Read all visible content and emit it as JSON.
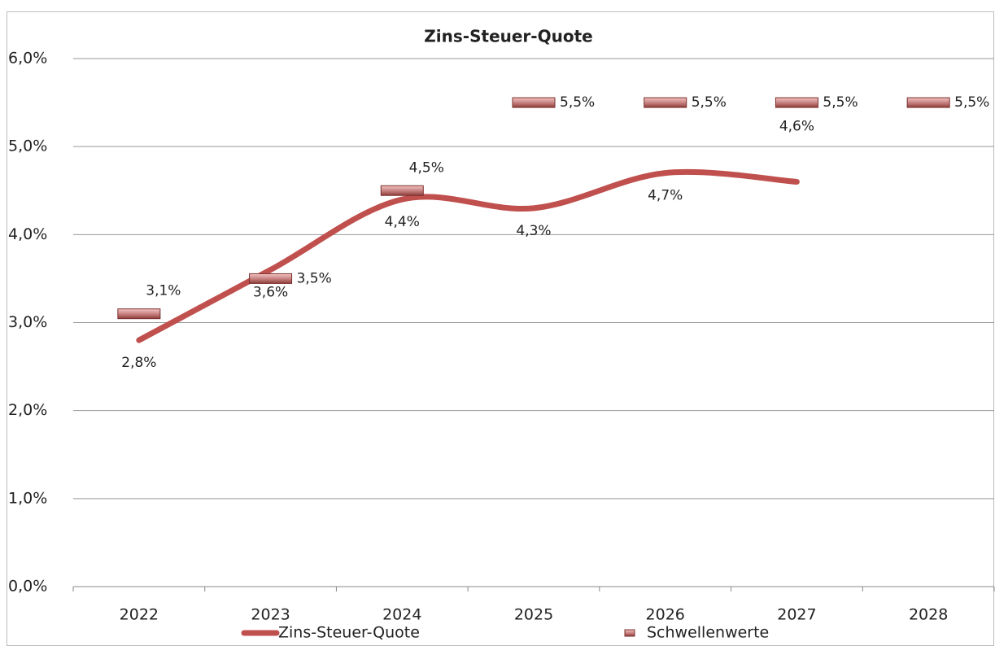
{
  "chart_data": {
    "type": "line",
    "title": "Zins-Steuer-Quote",
    "categories": [
      "2022",
      "2023",
      "2024",
      "2025",
      "2026",
      "2027",
      "2028"
    ],
    "ylim": [
      0,
      6
    ],
    "yticks": [
      {
        "value": 0,
        "label": "0,0%"
      },
      {
        "value": 1,
        "label": "1,0%"
      },
      {
        "value": 2,
        "label": "2,0%"
      },
      {
        "value": 3,
        "label": "3,0%"
      },
      {
        "value": 4,
        "label": "4,0%"
      },
      {
        "value": 5,
        "label": "5,0%"
      },
      {
        "value": 6,
        "label": "6,0%"
      }
    ],
    "grid": true,
    "legend": "bottom",
    "series": [
      {
        "name": "Zins-Steuer-Quote",
        "color": "#c0504d",
        "smooth": true,
        "values": [
          2.8,
          3.6,
          4.4,
          4.3,
          4.7,
          4.6,
          null
        ],
        "value_labels": [
          "2,8%",
          "3,6%",
          "4,4%",
          "4,3%",
          "4,7%",
          "4,6%",
          null
        ]
      },
      {
        "name": "Schwellenwerte",
        "color": "#c0504d",
        "marker": "bar",
        "values": [
          3.1,
          3.5,
          4.5,
          5.5,
          5.5,
          5.5,
          5.5
        ],
        "value_labels": [
          "3,1%",
          "3,5%",
          "4,5%",
          "5,5%",
          "5,5%",
          "5,5%",
          "5,5%"
        ]
      }
    ]
  }
}
